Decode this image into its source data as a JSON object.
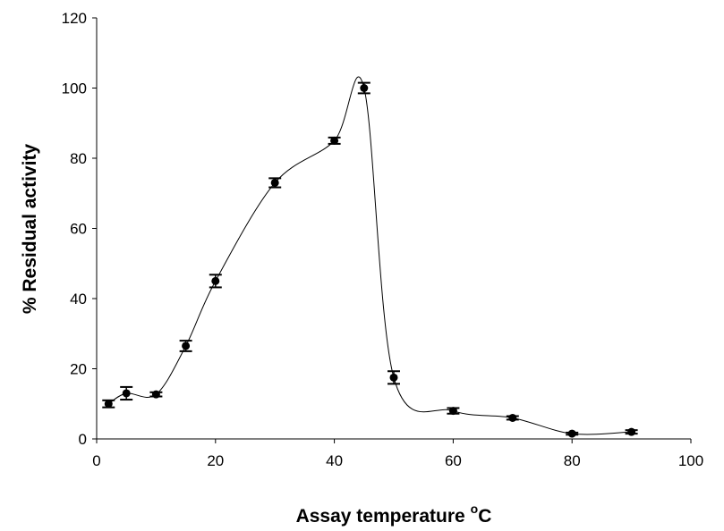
{
  "chart_data": {
    "type": "scatter",
    "title": "",
    "xlabel": "Assay temperature",
    "xlabel_superscript": "o",
    "xlabel_unit": "C",
    "ylabel": "% Residual activity",
    "xlim": [
      0,
      100
    ],
    "ylim": [
      0,
      120
    ],
    "xticks": [
      "0",
      "20",
      "40",
      "60",
      "80",
      "100"
    ],
    "yticks": [
      "0",
      "20",
      "40",
      "60",
      "80",
      "100",
      "120"
    ],
    "grid": false,
    "legend": "none",
    "series": [
      {
        "marker_color": "#000000",
        "line_color": "#000000",
        "smooth_line": true,
        "x": [
          2,
          5,
          10,
          15,
          20,
          30,
          40,
          45,
          50,
          60,
          70,
          80,
          90
        ],
        "y": [
          10,
          13,
          12.7,
          26.5,
          45,
          73,
          85,
          100,
          17.5,
          8,
          6,
          1.5,
          2
        ],
        "error": [
          1,
          1.8,
          0.6,
          1.5,
          1.8,
          1.3,
          0.9,
          1.5,
          1.8,
          0.8,
          0.5,
          0.3,
          0.5
        ]
      }
    ]
  }
}
